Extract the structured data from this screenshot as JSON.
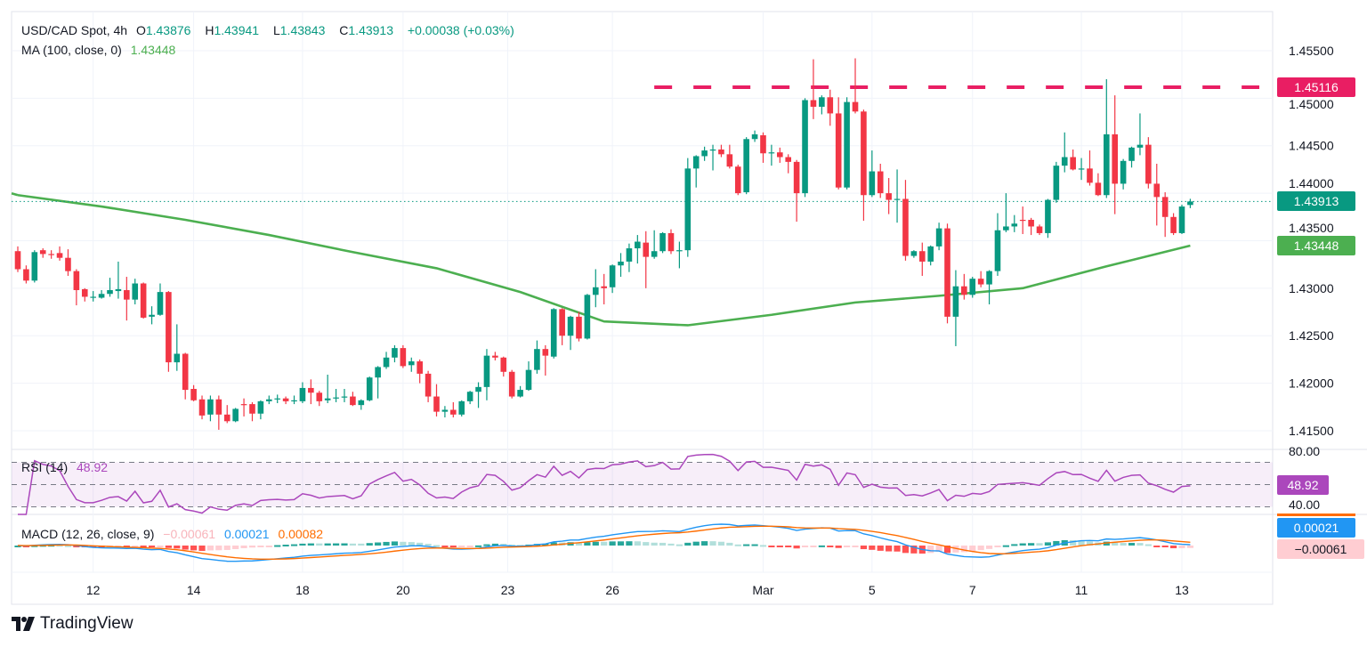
{
  "header": {
    "symbol": "USD/CAD Spot, 4h",
    "open_label": "O",
    "open": "1.43876",
    "high_label": "H",
    "high": "1.43941",
    "low_label": "L",
    "low": "1.43843",
    "close_label": "C",
    "close": "1.43913",
    "change": "+0.00038 (+0.03%)",
    "ma_label": "MA (100, close, 0)",
    "ma_value": "1.43448"
  },
  "rsi_legend": {
    "label": "RSI (14)",
    "value": "48.92"
  },
  "macd_legend": {
    "label": "MACD (12, 26, close, 9)",
    "histogram": "−0.00061",
    "macd": "0.00021",
    "signal": "0.00082"
  },
  "tags": {
    "resistance": "1.45116",
    "last_price": "1.43913",
    "ma": "1.43448",
    "rsi": "48.92",
    "macd": "0.00021",
    "histogram": "−0.00061"
  },
  "branding": {
    "name": "TradingView"
  },
  "colors": {
    "up": "#089981",
    "down": "#f23645",
    "ma": "#4caf50",
    "resistance": "#e91e63",
    "rsi": "#ab47bc",
    "macd": "#2196f3",
    "signal": "#ff6d00"
  },
  "chart_data": {
    "type": "candlestick",
    "title": "USD/CAD Spot, 4h",
    "ylim": [
      1.41303,
      1.45912
    ],
    "price_ticks": [
      "1.45500",
      "1.45000",
      "1.44500",
      "1.44000",
      "1.43500",
      "1.43000",
      "1.42500",
      "1.42000",
      "1.41500"
    ],
    "x_ticks": [
      {
        "label": "12",
        "bar": 9
      },
      {
        "label": "14",
        "bar": 21
      },
      {
        "label": "18",
        "bar": 34
      },
      {
        "label": "20",
        "bar": 46
      },
      {
        "label": "23",
        "bar": 58.5
      },
      {
        "label": "26",
        "bar": 71
      },
      {
        "label": "Mar",
        "bar": 89
      },
      {
        "label": "5",
        "bar": 102
      },
      {
        "label": "7",
        "bar": 114
      },
      {
        "label": "11",
        "bar": 127
      },
      {
        "label": "13",
        "bar": 139
      }
    ],
    "resistance": {
      "value": 1.45116,
      "from_bar": 76
    },
    "last_price": 1.43913,
    "ma100": [
      [
        0,
        1.4398
      ],
      [
        10,
        1.4386
      ],
      [
        20,
        1.4372
      ],
      [
        30,
        1.4356
      ],
      [
        40,
        1.4338
      ],
      [
        50,
        1.4321
      ],
      [
        60,
        1.4296
      ],
      [
        70,
        1.4265
      ],
      [
        80,
        1.4261
      ],
      [
        90,
        1.4272
      ],
      [
        100,
        1.4285
      ],
      [
        110,
        1.4292
      ],
      [
        120,
        1.43
      ],
      [
        130,
        1.4323
      ],
      [
        140,
        1.43448
      ]
    ],
    "candles": [
      [
        1.4339,
        1.4344,
        1.4317,
        1.432
      ],
      [
        1.432,
        1.4324,
        1.4305,
        1.4308
      ],
      [
        1.4308,
        1.434,
        1.4306,
        1.4338
      ],
      [
        1.434,
        1.4342,
        1.4332,
        1.4336
      ],
      [
        1.4336,
        1.434,
        1.4331,
        1.4335
      ],
      [
        1.4337,
        1.4344,
        1.4329,
        1.4332
      ],
      [
        1.4332,
        1.4341,
        1.4313,
        1.4318
      ],
      [
        1.4318,
        1.432,
        1.4282,
        1.4298
      ],
      [
        1.4299,
        1.43,
        1.4286,
        1.4291
      ],
      [
        1.429,
        1.4297,
        1.4286,
        1.4291
      ],
      [
        1.429,
        1.4298,
        1.4289,
        1.4294
      ],
      [
        1.4294,
        1.4311,
        1.4291,
        1.4298
      ],
      [
        1.4297,
        1.4328,
        1.4289,
        1.4299
      ],
      [
        1.4298,
        1.4312,
        1.4266,
        1.4288
      ],
      [
        1.4288,
        1.431,
        1.4283,
        1.4305
      ],
      [
        1.4305,
        1.4306,
        1.4268,
        1.4269
      ],
      [
        1.427,
        1.4281,
        1.4262,
        1.4272
      ],
      [
        1.4272,
        1.4305,
        1.4271,
        1.4296
      ],
      [
        1.4296,
        1.4297,
        1.4212,
        1.4222
      ],
      [
        1.4222,
        1.4262,
        1.4213,
        1.4231
      ],
      [
        1.4231,
        1.4232,
        1.4183,
        1.4193
      ],
      [
        1.4194,
        1.4198,
        1.4181,
        1.4182
      ],
      [
        1.4183,
        1.4187,
        1.4162,
        1.4166
      ],
      [
        1.4167,
        1.4187,
        1.416,
        1.4183
      ],
      [
        1.4183,
        1.4187,
        1.4151,
        1.4167
      ],
      [
        1.4167,
        1.4177,
        1.4158,
        1.416
      ],
      [
        1.416,
        1.4174,
        1.4159,
        1.4173
      ],
      [
        1.4178,
        1.4184,
        1.4165,
        1.4177
      ],
      [
        1.4178,
        1.418,
        1.416,
        1.4168
      ],
      [
        1.4168,
        1.4182,
        1.4162,
        1.4181
      ],
      [
        1.4181,
        1.4187,
        1.4178,
        1.4183
      ],
      [
        1.4183,
        1.4188,
        1.4179,
        1.4184
      ],
      [
        1.4184,
        1.4186,
        1.4178,
        1.4181
      ],
      [
        1.4181,
        1.4187,
        1.4178,
        1.4182
      ],
      [
        1.4181,
        1.4201,
        1.4179,
        1.4195
      ],
      [
        1.4195,
        1.4204,
        1.4178,
        1.419
      ],
      [
        1.419,
        1.4192,
        1.4176,
        1.4181
      ],
      [
        1.4182,
        1.4209,
        1.4179,
        1.4184
      ],
      [
        1.4184,
        1.4194,
        1.418,
        1.4185
      ],
      [
        1.4185,
        1.4194,
        1.418,
        1.4186
      ],
      [
        1.4186,
        1.4191,
        1.4176,
        1.4177
      ],
      [
        1.4177,
        1.4183,
        1.4172,
        1.4182
      ],
      [
        1.4182,
        1.4207,
        1.4181,
        1.4206
      ],
      [
        1.4206,
        1.4218,
        1.4184,
        1.4217
      ],
      [
        1.4217,
        1.4233,
        1.4215,
        1.4227
      ],
      [
        1.4227,
        1.424,
        1.4222,
        1.4237
      ],
      [
        1.4237,
        1.424,
        1.4216,
        1.4218
      ],
      [
        1.4219,
        1.4227,
        1.4212,
        1.4223
      ],
      [
        1.4223,
        1.4225,
        1.42,
        1.421
      ],
      [
        1.421,
        1.4213,
        1.418,
        1.4186
      ],
      [
        1.4186,
        1.4199,
        1.4165,
        1.417
      ],
      [
        1.417,
        1.4176,
        1.4164,
        1.4172
      ],
      [
        1.4172,
        1.418,
        1.4164,
        1.4167
      ],
      [
        1.4167,
        1.4182,
        1.4165,
        1.4181
      ],
      [
        1.4181,
        1.4192,
        1.4178,
        1.4191
      ],
      [
        1.4191,
        1.4201,
        1.4174,
        1.4196
      ],
      [
        1.4196,
        1.4236,
        1.4182,
        1.4229
      ],
      [
        1.4229,
        1.4233,
        1.4224,
        1.4227
      ],
      [
        1.4227,
        1.4228,
        1.4207,
        1.4212
      ],
      [
        1.4212,
        1.4214,
        1.4184,
        1.4186
      ],
      [
        1.4186,
        1.4197,
        1.4185,
        1.4193
      ],
      [
        1.4193,
        1.4223,
        1.4192,
        1.4214
      ],
      [
        1.4214,
        1.4245,
        1.421,
        1.4236
      ],
      [
        1.4236,
        1.424,
        1.4208,
        1.4229
      ],
      [
        1.4228,
        1.4279,
        1.4226,
        1.4278
      ],
      [
        1.4278,
        1.4279,
        1.424,
        1.425
      ],
      [
        1.425,
        1.4271,
        1.4235,
        1.427
      ],
      [
        1.427,
        1.4275,
        1.4244,
        1.4247
      ],
      [
        1.4247,
        1.4294,
        1.4246,
        1.4293
      ],
      [
        1.4293,
        1.432,
        1.428,
        1.4301
      ],
      [
        1.4302,
        1.4315,
        1.4283,
        1.43
      ],
      [
        1.4301,
        1.4325,
        1.4295,
        1.4324
      ],
      [
        1.4324,
        1.4337,
        1.4312,
        1.4328
      ],
      [
        1.4328,
        1.4347,
        1.4317,
        1.4342
      ],
      [
        1.4342,
        1.4356,
        1.4326,
        1.4349
      ],
      [
        1.4348,
        1.436,
        1.43,
        1.4333
      ],
      [
        1.4333,
        1.4361,
        1.4331,
        1.4339
      ],
      [
        1.4339,
        1.4359,
        1.4337,
        1.4358
      ],
      [
        1.4358,
        1.4362,
        1.4336,
        1.4339
      ],
      [
        1.4339,
        1.4349,
        1.4321,
        1.434
      ],
      [
        1.434,
        1.4437,
        1.4333,
        1.4426
      ],
      [
        1.4426,
        1.444,
        1.4406,
        1.4439
      ],
      [
        1.4439,
        1.4449,
        1.4434,
        1.4445
      ],
      [
        1.4445,
        1.4451,
        1.4424,
        1.4446
      ],
      [
        1.4446,
        1.4451,
        1.4438,
        1.4441
      ],
      [
        1.4441,
        1.4451,
        1.4426,
        1.4428
      ],
      [
        1.4428,
        1.443,
        1.4398,
        1.44
      ],
      [
        1.4401,
        1.4459,
        1.4399,
        1.4457
      ],
      [
        1.4457,
        1.4466,
        1.4454,
        1.4462
      ],
      [
        1.4461,
        1.4464,
        1.4432,
        1.4442
      ],
      [
        1.4442,
        1.4451,
        1.4429,
        1.4443
      ],
      [
        1.4443,
        1.4448,
        1.4432,
        1.4438
      ],
      [
        1.4438,
        1.4441,
        1.4421,
        1.4433
      ],
      [
        1.4433,
        1.4435,
        1.437,
        1.44
      ],
      [
        1.44,
        1.45,
        1.4396,
        1.4498
      ],
      [
        1.4498,
        1.4541,
        1.4478,
        1.4491
      ],
      [
        1.4491,
        1.4503,
        1.4483,
        1.4501
      ],
      [
        1.4501,
        1.4509,
        1.4471,
        1.4484
      ],
      [
        1.4484,
        1.4501,
        1.4404,
        1.4406
      ],
      [
        1.4406,
        1.4501,
        1.4404,
        1.4496
      ],
      [
        1.4496,
        1.4542,
        1.4484,
        1.4486
      ],
      [
        1.4486,
        1.4488,
        1.4371,
        1.4398
      ],
      [
        1.4398,
        1.4445,
        1.4396,
        1.4423
      ],
      [
        1.4423,
        1.4431,
        1.4395,
        1.44
      ],
      [
        1.44,
        1.4416,
        1.4378,
        1.4393
      ],
      [
        1.4393,
        1.4425,
        1.4369,
        1.4394
      ],
      [
        1.4394,
        1.4414,
        1.4329,
        1.4334
      ],
      [
        1.4334,
        1.434,
        1.4332,
        1.4339
      ],
      [
        1.4339,
        1.4348,
        1.4313,
        1.4328
      ],
      [
        1.4328,
        1.4345,
        1.4324,
        1.4344
      ],
      [
        1.4344,
        1.4369,
        1.434,
        1.4363
      ],
      [
        1.4363,
        1.4368,
        1.4263,
        1.427
      ],
      [
        1.427,
        1.4319,
        1.4239,
        1.4302
      ],
      [
        1.4302,
        1.4315,
        1.4288,
        1.4293
      ],
      [
        1.4293,
        1.4312,
        1.429,
        1.431
      ],
      [
        1.431,
        1.4318,
        1.4301,
        1.4304
      ],
      [
        1.4304,
        1.4319,
        1.4283,
        1.4318
      ],
      [
        1.4318,
        1.4379,
        1.4313,
        1.4361
      ],
      [
        1.4361,
        1.44,
        1.4359,
        1.4365
      ],
      [
        1.4365,
        1.4377,
        1.4359,
        1.4368
      ],
      [
        1.4372,
        1.4386,
        1.4357,
        1.4371
      ],
      [
        1.4372,
        1.4374,
        1.4356,
        1.4365
      ],
      [
        1.4365,
        1.4367,
        1.4356,
        1.4358
      ],
      [
        1.4358,
        1.4394,
        1.4353,
        1.4393
      ],
      [
        1.4393,
        1.4433,
        1.439,
        1.4429
      ],
      [
        1.4429,
        1.4464,
        1.4422,
        1.4438
      ],
      [
        1.4438,
        1.4446,
        1.4424,
        1.4425
      ],
      [
        1.4425,
        1.4437,
        1.4414,
        1.4426
      ],
      [
        1.4426,
        1.4445,
        1.4408,
        1.4411
      ],
      [
        1.4411,
        1.4421,
        1.4397,
        1.4398
      ],
      [
        1.4398,
        1.452,
        1.4395,
        1.4462
      ],
      [
        1.4462,
        1.4503,
        1.4378,
        1.441
      ],
      [
        1.441,
        1.4436,
        1.4404,
        1.4434
      ],
      [
        1.4434,
        1.4449,
        1.4427,
        1.4448
      ],
      [
        1.4448,
        1.4484,
        1.444,
        1.4451
      ],
      [
        1.4451,
        1.4459,
        1.4405,
        1.441
      ],
      [
        1.441,
        1.4431,
        1.4366,
        1.4396
      ],
      [
        1.4396,
        1.4401,
        1.4354,
        1.4375
      ],
      [
        1.4375,
        1.4379,
        1.4356,
        1.4358
      ],
      [
        1.4358,
        1.4388,
        1.4357,
        1.4386
      ],
      [
        1.43876,
        1.43941,
        1.43843,
        1.43913
      ]
    ],
    "rsi": {
      "period": 14,
      "ylim": [
        23.2,
        81.6
      ],
      "levels": [
        70,
        50,
        30
      ],
      "ticks": [
        {
          "label": "80.00",
          "value": 80
        },
        {
          "label": "40.00",
          "value": 40
        }
      ]
    },
    "macd": {
      "fast": 12,
      "slow": 26,
      "signal": 9
    }
  }
}
